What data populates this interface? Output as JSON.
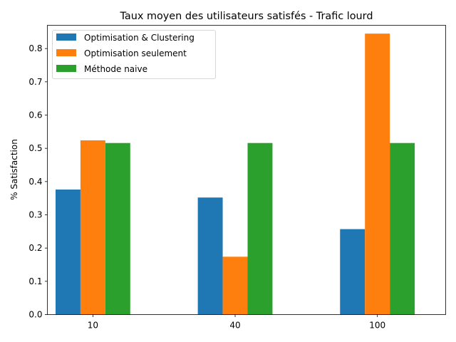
{
  "chart_data": {
    "type": "bar",
    "title": "Taux moyen des utilisateurs satisfés - Trafic lourd",
    "xlabel": "",
    "ylabel": "% Satisfaction",
    "categories": [
      "10",
      "40",
      "100"
    ],
    "ylim": [
      0,
      0.87
    ],
    "yticks": [
      "0.0",
      "0.1",
      "0.2",
      "0.3",
      "0.4",
      "0.5",
      "0.6",
      "0.7",
      "0.8"
    ],
    "grid": false,
    "legend_position": "top-left",
    "series": [
      {
        "name": "Optimisation & Clustering",
        "color": "#1f77b4",
        "values": [
          0.376,
          0.352,
          0.257
        ]
      },
      {
        "name": "Optimisation seulement",
        "color": "#ff7f0e",
        "values": [
          0.524,
          0.174,
          0.845
        ]
      },
      {
        "name": "Méthode naive",
        "color": "#2ca02c",
        "values": [
          0.516,
          0.516,
          0.516
        ]
      }
    ]
  }
}
